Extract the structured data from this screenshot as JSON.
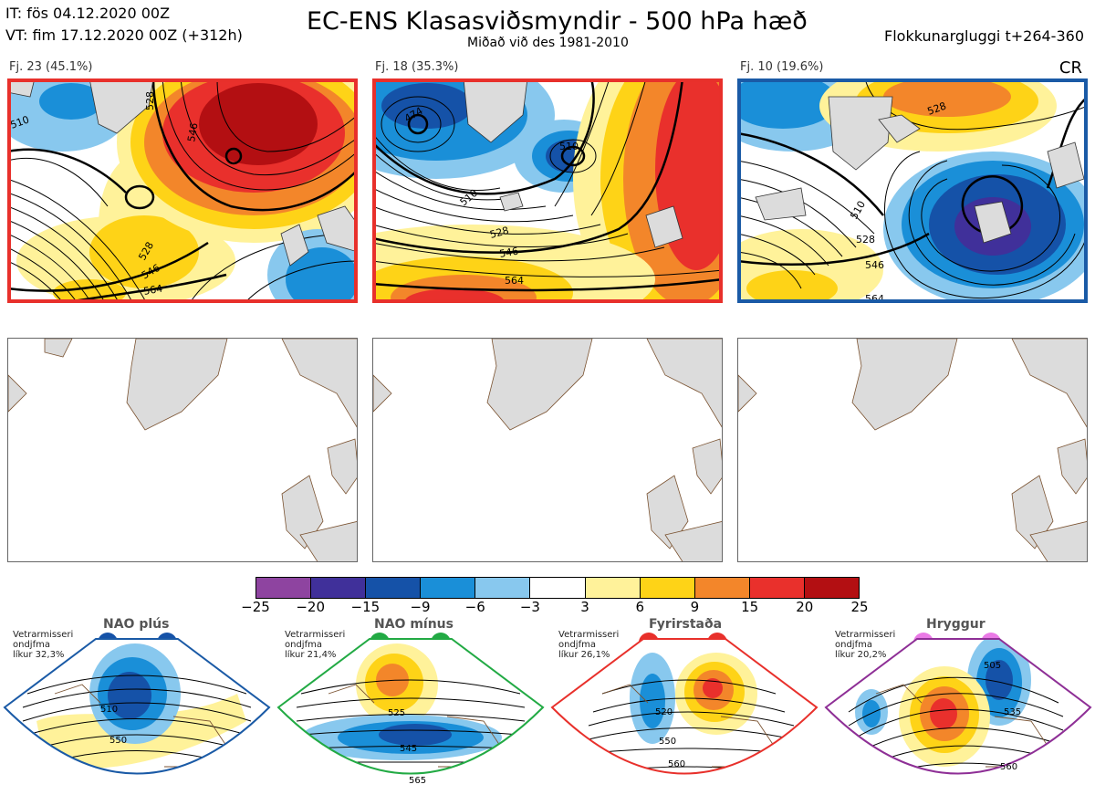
{
  "header": {
    "initial_time": "IT: fös 04.12.2020 00Z",
    "valid_time": "VT: fim 17.12.2020 00Z  (+312h)",
    "title": "EC-ENS Klasasviðsmyndir - 500 hPa hæð",
    "subtitle": "Miðað við des 1981-2010",
    "window": "Flokkunargluggi t+264-360"
  },
  "clusters": [
    {
      "label": "Fj. 23 (45.1%)",
      "border_color": "#e8302b",
      "contours": [
        "510",
        "528",
        "546",
        "564",
        "546",
        "528"
      ]
    },
    {
      "label": "Fj. 18 (35.3%)",
      "border_color": "#e8302b",
      "contours": [
        "474",
        "510",
        "528",
        "546",
        "564",
        "510"
      ]
    },
    {
      "label": "Fj. 10 (19.6%)",
      "border_color": "#1a5aa6",
      "contours": [
        "510",
        "528",
        "546",
        "564",
        "528"
      ]
    }
  ],
  "cr_label": "CR",
  "colorbar": {
    "colors": [
      "#8e44a0",
      "#40309a",
      "#1552a8",
      "#1a8fd8",
      "#88c8ee",
      "#ffffff",
      "#fff29a",
      "#fed317",
      "#f3862a",
      "#e9302c",
      "#b30f12"
    ],
    "ticks": [
      "−25",
      "−20",
      "−15",
      "−9",
      "−6",
      "−3",
      "3",
      "6",
      "9",
      "15",
      "20",
      "25"
    ]
  },
  "regimes": [
    {
      "name": "NAO plús",
      "meta": [
        "Vetrarmisseri",
        "ondjfma",
        "líkur 32,3%"
      ],
      "color": "#1552a8",
      "labels": [
        "510",
        "550"
      ]
    },
    {
      "name": "NAO mínus",
      "meta": [
        "Vetrarmisseri",
        "ondjfma",
        "líkur 21,4%"
      ],
      "color": "#22aa44",
      "labels": [
        "525",
        "545",
        "565"
      ]
    },
    {
      "name": "Fyrirstaða",
      "meta": [
        "Vetrarmisseri",
        "ondjfma",
        "líkur 26,1%"
      ],
      "color": "#e8302b",
      "labels": [
        "520",
        "550",
        "560"
      ]
    },
    {
      "name": "Hryggur",
      "meta": [
        "Vetrarmisseri",
        "ondjfma",
        "líkur 20,2%"
      ],
      "color": "#8e2f96",
      "labels": [
        "505",
        "535",
        "560"
      ]
    }
  ]
}
